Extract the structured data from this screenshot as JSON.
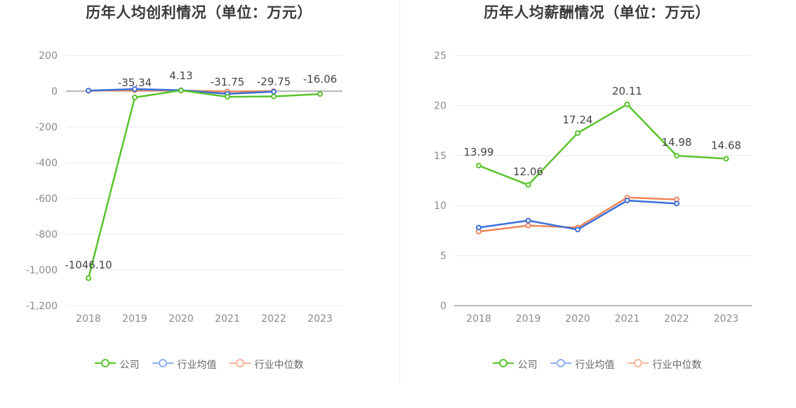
{
  "chart_data": [
    {
      "type": "line",
      "title": "历年人均创利情况（单位：万元）",
      "categories": [
        "2018",
        "2019",
        "2020",
        "2021",
        "2022",
        "2023"
      ],
      "ylim": [
        -1200,
        200
      ],
      "yticks": [
        200,
        0,
        -200,
        -400,
        -600,
        -800,
        -1000,
        -1200
      ],
      "ytick_labels": [
        "200",
        "0",
        "-200",
        "-400",
        "-600",
        "-800",
        "-1,000",
        "-1,200"
      ],
      "grid": true,
      "legend_position": "bottom",
      "series": [
        {
          "name": "公司",
          "color": "#5ac32b",
          "values": [
            -1046.1,
            -35.34,
            4.13,
            -31.75,
            -29.75,
            -16.06
          ],
          "labels": [
            "-1046.10",
            "-35.34",
            "4.13",
            "-31.75",
            "-29.75",
            "-16.06"
          ]
        },
        {
          "name": "行业均值",
          "color": "#3a6fd9",
          "values": [
            3,
            12,
            5,
            -15,
            -3,
            null
          ],
          "labels": []
        },
        {
          "name": "行业中位数",
          "color": "#ee8558",
          "values": [
            2,
            5,
            3,
            -2,
            0,
            null
          ],
          "labels": []
        }
      ]
    },
    {
      "type": "line",
      "title": "历年人均薪酬情况（单位：万元）",
      "categories": [
        "2018",
        "2019",
        "2020",
        "2021",
        "2022",
        "2023"
      ],
      "ylim": [
        0,
        25
      ],
      "yticks": [
        25,
        20,
        15,
        10,
        5,
        0
      ],
      "ytick_labels": [
        "25",
        "20",
        "15",
        "10",
        "5",
        "0"
      ],
      "grid": true,
      "legend_position": "bottom",
      "series": [
        {
          "name": "公司",
          "color": "#5ac32b",
          "values": [
            13.99,
            12.06,
            17.24,
            20.11,
            14.98,
            14.68
          ],
          "labels": [
            "13.99",
            "12.06",
            "17.24",
            "20.11",
            "14.98",
            "14.68"
          ]
        },
        {
          "name": "行业均值",
          "color": "#3a6fd9",
          "values": [
            7.8,
            8.5,
            7.6,
            10.5,
            10.2,
            null
          ],
          "labels": []
        },
        {
          "name": "行业中位数",
          "color": "#ee8558",
          "values": [
            7.4,
            8.0,
            7.8,
            10.8,
            10.6,
            null
          ],
          "labels": []
        }
      ]
    }
  ],
  "legend": {
    "items": [
      {
        "label": "公司",
        "color": "#5ac32b"
      },
      {
        "label": "行业均值",
        "color": "#8fb0ee"
      },
      {
        "label": "行业中位数",
        "color": "#f5b49a"
      }
    ]
  }
}
